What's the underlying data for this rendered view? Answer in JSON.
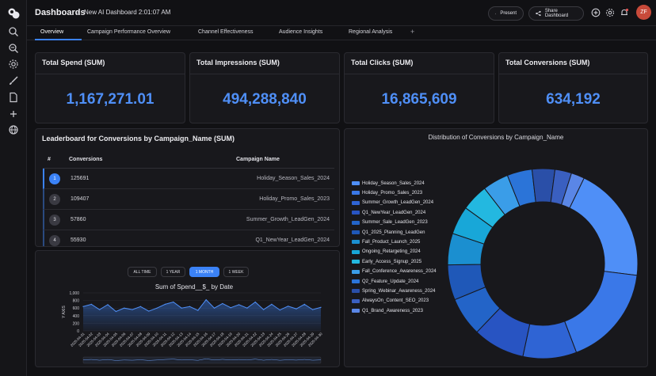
{
  "app": {
    "breadcrumb_root": "Dashboards",
    "breadcrumb_sep": "/",
    "dashboard_title": "New AI Dashboard 2:01:07 AM",
    "present_label": "Present",
    "share_label": "Share Dashboard",
    "avatar_initials": "ZF",
    "accent": "#3b82f6"
  },
  "rail_icons": [
    "logo-icon",
    "search-icon",
    "zoom-icon",
    "gear-icon",
    "brush-icon",
    "document-icon",
    "plus-icon",
    "globe-icon"
  ],
  "tabs": [
    {
      "label": "Overview",
      "active": true
    },
    {
      "label": "Campaign Performance Overview"
    },
    {
      "label": "Channel Effectiveness"
    },
    {
      "label": "Audience Insights"
    },
    {
      "label": "Regional Analysis"
    }
  ],
  "tab_add": "+",
  "kpis": [
    {
      "title": "Total Spend (SUM)",
      "value": "1,167,271.01"
    },
    {
      "title": "Total Impressions (SUM)",
      "value": "494,288,840"
    },
    {
      "title": "Total Clicks (SUM)",
      "value": "16,865,609"
    },
    {
      "title": "Total Conversions (SUM)",
      "value": "634,192"
    }
  ],
  "leaderboard": {
    "title": "Leaderboard for Conversions by Campaign_Name (SUM)",
    "columns": [
      "#",
      "Conversions",
      "Campaign Name"
    ],
    "rows": [
      {
        "rank": "1",
        "conversions": "125691",
        "campaign": "Holiday_Season_Sales_2024"
      },
      {
        "rank": "2",
        "conversions": "109407",
        "campaign": "Holiday_Promo_Sales_2023"
      },
      {
        "rank": "3",
        "conversions": "57860",
        "campaign": "Summer_Growth_LeadGen_2024"
      },
      {
        "rank": "4",
        "conversions": "55930",
        "campaign": "Q1_NewYear_LeadGen_2024"
      }
    ]
  },
  "time_ranges": [
    {
      "label": "ALL TIME"
    },
    {
      "label": "1 YEAR"
    },
    {
      "label": "1 MONTH",
      "active": true
    },
    {
      "label": "1 WEEK"
    }
  ],
  "chart_data": [
    {
      "type": "area",
      "title": "Sum of Spend__$_ by Date",
      "ylabel": "Y AXIS",
      "xlabel": "",
      "ylim": [
        0,
        1000
      ],
      "yticks": [
        "1,000",
        "800",
        "600",
        "400",
        "200",
        "0"
      ],
      "x": [
        "2025-04-01",
        "2025-04-02",
        "2025-04-03",
        "2025-04-04",
        "2025-04-05",
        "2025-04-06",
        "2025-04-07",
        "2025-04-08",
        "2025-04-09",
        "2025-04-10",
        "2025-04-11",
        "2025-04-12",
        "2025-04-13",
        "2025-04-14",
        "2025-04-15",
        "2025-04-16",
        "2025-04-17",
        "2025-04-18",
        "2025-04-19",
        "2025-04-20",
        "2025-04-21",
        "2025-04-22",
        "2025-04-23",
        "2025-04-24",
        "2025-04-25",
        "2025-04-26",
        "2025-04-27",
        "2025-04-28",
        "2025-04-29",
        "2025-04-30"
      ],
      "values": [
        640,
        700,
        560,
        690,
        510,
        600,
        560,
        640,
        520,
        600,
        700,
        760,
        600,
        640,
        540,
        820,
        600,
        720,
        610,
        690,
        600,
        760,
        560,
        700,
        550,
        650,
        580,
        700,
        560,
        620
      ],
      "grid": true
    },
    {
      "type": "pie",
      "title": "Distribution of Conversions by Campaign_Name",
      "donut": true,
      "legend_position": "left",
      "categories": [
        "Holiday_Season_Sales_2024",
        "Holiday_Promo_Sales_2023",
        "Summer_Growth_LeadGen_2024",
        "Q1_NewYear_LeadGen_2024",
        "Summer_Sale_LeadGen_2023",
        "Q1_2025_Planning_LeadGen",
        "Fall_Product_Launch_2025",
        "Ongoing_Retargeting_2024",
        "Early_Access_Signup_2025",
        "Fall_Conference_Awareness_2024",
        "Q2_Feature_Update_2024",
        "Spring_Webinar_Awareness_2024",
        "AlwaysOn_Content_SEO_2023",
        "Q1_Brand_Awareness_2023"
      ],
      "values": [
        125691,
        109407,
        57860,
        55930,
        42000,
        38000,
        34000,
        30500,
        29000,
        28000,
        27000,
        24500,
        18000,
        14304
      ],
      "colors": [
        "#4f8ff7",
        "#3a78e8",
        "#2f64d4",
        "#2854c2",
        "#2364c8",
        "#1f58b8",
        "#1b8fd0",
        "#18a7d8",
        "#23b8e0",
        "#3a9de8",
        "#2b74d8",
        "#2a4fa8",
        "#3a5fc0",
        "#5a86e6"
      ]
    }
  ]
}
